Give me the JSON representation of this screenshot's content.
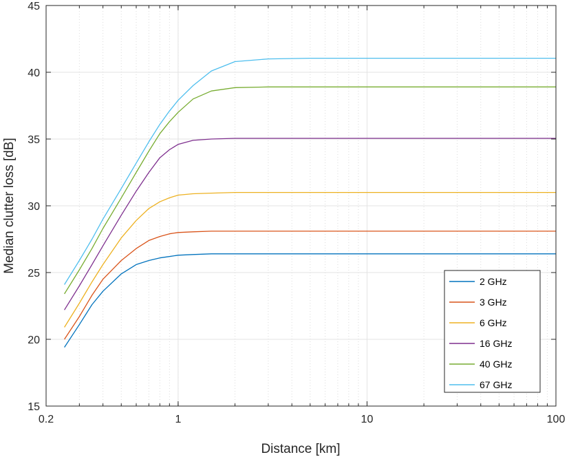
{
  "chart_data": {
    "type": "line",
    "xlabel": "Distance [km]",
    "ylabel": "Median clutter loss [dB]",
    "xscale": "log",
    "xlim": [
      0.2,
      100
    ],
    "ylim": [
      15,
      45
    ],
    "xticks": [
      0.2,
      1,
      10,
      100
    ],
    "xtick_labels": [
      "0.2",
      "1",
      "10",
      "100"
    ],
    "yticks": [
      15,
      20,
      25,
      30,
      35,
      40,
      45
    ],
    "ytick_labels": [
      "15",
      "20",
      "25",
      "30",
      "35",
      "40",
      "45"
    ],
    "grid": true,
    "legend_position": "bottom-right",
    "x": [
      0.25,
      0.3,
      0.35,
      0.4,
      0.5,
      0.6,
      0.7,
      0.8,
      0.9,
      1.0,
      1.2,
      1.5,
      2.0,
      3.0,
      5.0,
      10,
      20,
      50,
      100
    ],
    "series": [
      {
        "name": "2 GHz",
        "color": "#0072BD",
        "values": [
          19.4,
          21.1,
          22.6,
          23.6,
          24.9,
          25.6,
          25.9,
          26.1,
          26.2,
          26.3,
          26.35,
          26.4,
          26.4,
          26.4,
          26.4,
          26.4,
          26.4,
          26.4,
          26.4
        ]
      },
      {
        "name": "3 GHz",
        "color": "#D95319",
        "values": [
          20.0,
          21.7,
          23.3,
          24.5,
          25.9,
          26.8,
          27.4,
          27.7,
          27.9,
          28.0,
          28.05,
          28.1,
          28.1,
          28.1,
          28.1,
          28.1,
          28.1,
          28.1,
          28.1
        ]
      },
      {
        "name": "6 GHz",
        "color": "#EDB120",
        "values": [
          20.9,
          22.7,
          24.3,
          25.6,
          27.6,
          28.9,
          29.8,
          30.3,
          30.6,
          30.8,
          30.9,
          30.95,
          31.0,
          31.0,
          31.0,
          31.0,
          31.0,
          31.0,
          31.0
        ]
      },
      {
        "name": "16 GHz",
        "color": "#7E2F8E",
        "values": [
          22.2,
          24.0,
          25.6,
          27.0,
          29.3,
          31.1,
          32.5,
          33.6,
          34.2,
          34.6,
          34.9,
          35.0,
          35.05,
          35.05,
          35.05,
          35.05,
          35.05,
          35.05,
          35.05
        ]
      },
      {
        "name": "40 GHz",
        "color": "#77AC30",
        "values": [
          23.4,
          25.2,
          26.8,
          28.3,
          30.6,
          32.5,
          34.1,
          35.4,
          36.3,
          37.0,
          38.0,
          38.6,
          38.85,
          38.9,
          38.9,
          38.9,
          38.9,
          38.9,
          38.9
        ]
      },
      {
        "name": "67 GHz",
        "color": "#4DBEEE",
        "values": [
          24.1,
          25.9,
          27.5,
          29.0,
          31.3,
          33.2,
          34.8,
          36.1,
          37.1,
          37.9,
          39.0,
          40.1,
          40.8,
          41.0,
          41.05,
          41.05,
          41.05,
          41.05,
          41.05
        ]
      }
    ]
  }
}
